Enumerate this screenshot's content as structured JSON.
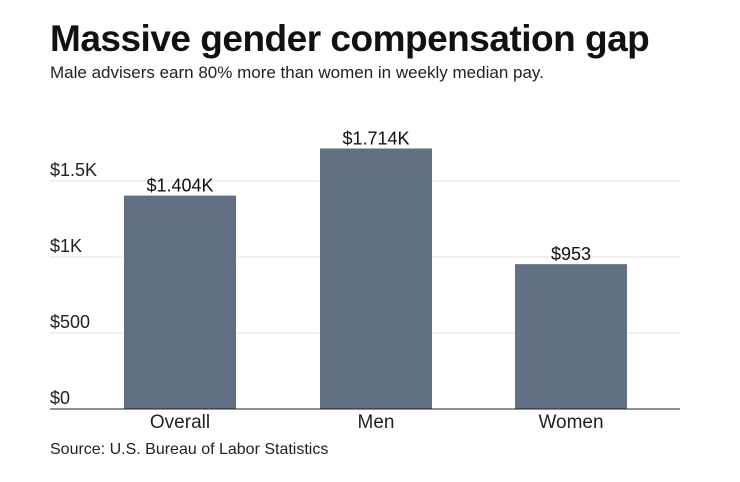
{
  "chart_data": {
    "type": "bar",
    "title": "Massive gender compensation gap",
    "subtitle": "Male advisers earn 80% more than women in weekly median pay.",
    "source": "Source: U.S. Bureau of Labor Statistics",
    "categories": [
      "Overall",
      "Men",
      "Women"
    ],
    "values": [
      1404,
      1714,
      953
    ],
    "data_labels": [
      "$1.404K",
      "$1.714K",
      "$953"
    ],
    "ylim": [
      0,
      1714
    ],
    "yticks": [
      0,
      500,
      1000,
      1500
    ],
    "ytick_labels": [
      "$0",
      "$500",
      "$1K",
      "$1.5K"
    ],
    "grid": true,
    "bar_color": "#627083",
    "xlabel": "",
    "ylabel": ""
  }
}
